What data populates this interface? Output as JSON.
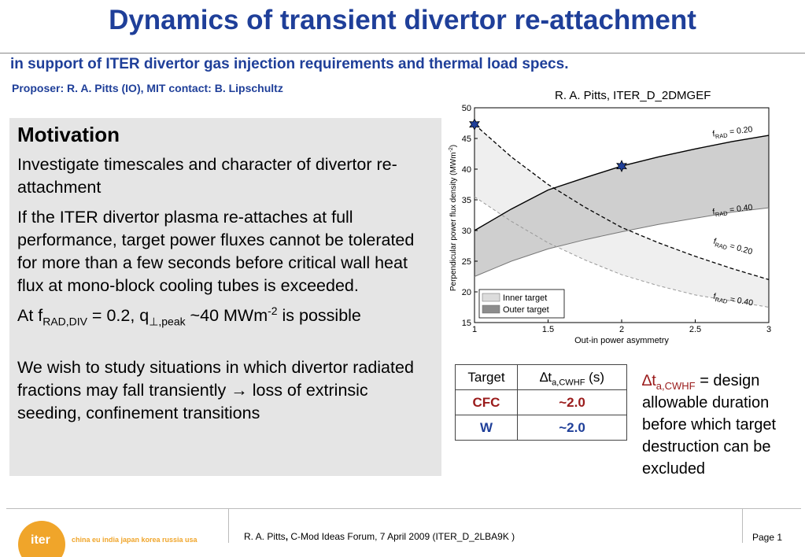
{
  "header": {
    "title": "Dynamics of transient divertor re-attachment",
    "subtitle": "in support of ITER divertor gas injection requirements and thermal load specs.",
    "proposer": "Proposer: R. A. Pitts (IO), MIT contact: B. Lipschultz",
    "credit": "R. A. Pitts, ITER_D_2DMGEF"
  },
  "motivation": {
    "heading": "Motivation",
    "p1": "Investigate timescales and character of divertor re-attachment",
    "p2": "If the ITER divertor plasma re-attaches at full performance,  target power fluxes cannot be tolerated for more than a few seconds before critical wall heat flux at mono-block cooling tubes is exceeded.",
    "p3_prefix": "At f",
    "p3_sub1": "RAD,DIV",
    "p3_mid": " = 0.2, q",
    "p3_sub2": "⊥,peak",
    "p3_after": " ~40 MWm",
    "p3_sup": "-2",
    "p3_end": " is possible",
    "p4_prefix": "We wish to study situations in which divertor radiated fractions may fall transiently ",
    "p4_arrow": "→",
    "p4_suffix": " loss of extrinsic seeding, confinement transitions"
  },
  "chart_data": {
    "type": "line",
    "xlabel": "Out-in power asymmetry",
    "ylabel": "Perpendicular power flux density (MWm",
    "ylabel_sup": "-2",
    "ylabel_end": ")",
    "xlim": [
      1,
      3
    ],
    "ylim": [
      15,
      50
    ],
    "x_ticks": [
      "1",
      "1.5",
      "2",
      "2.5",
      "3"
    ],
    "y_ticks": [
      "15",
      "20",
      "25",
      "30",
      "35",
      "40",
      "45",
      "50"
    ],
    "grid": false,
    "legend_position": "bottom-left",
    "legend": [
      "Inner target",
      "Outer target"
    ],
    "series": [
      {
        "name": "Outer target, f_RAD = 0.20",
        "style": "solid",
        "x": [
          1.0,
          1.25,
          1.5,
          1.75,
          2.0,
          2.25,
          2.5,
          2.75,
          3.0
        ],
        "y": [
          30.0,
          33.5,
          36.6,
          38.6,
          40.5,
          42.0,
          43.3,
          44.5,
          45.5
        ]
      },
      {
        "name": "Outer target, f_RAD = 0.40",
        "style": "solid-gray",
        "x": [
          1.0,
          1.25,
          1.5,
          1.75,
          2.0,
          2.25,
          2.5,
          2.75,
          3.0
        ],
        "y": [
          22.5,
          25.0,
          27.0,
          28.5,
          29.8,
          31.0,
          32.0,
          33.0,
          33.7
        ]
      },
      {
        "name": "Inner target, f_RAD = 0.20",
        "style": "dashed",
        "x": [
          1.0,
          1.25,
          1.5,
          1.75,
          2.0,
          2.25,
          2.5,
          2.75,
          3.0
        ],
        "y": [
          47.3,
          42.0,
          37.5,
          33.8,
          30.5,
          28.0,
          25.8,
          23.8,
          22.0
        ]
      },
      {
        "name": "Inner target, f_RAD = 0.40",
        "style": "dashed-gray",
        "x": [
          1.0,
          1.25,
          1.5,
          1.75,
          2.0,
          2.25,
          2.5,
          2.75,
          3.0
        ],
        "y": [
          35.5,
          31.5,
          28.0,
          25.2,
          22.8,
          21.0,
          19.5,
          18.5,
          17.5
        ]
      }
    ],
    "markers": [
      {
        "x": 1.0,
        "y": 47.3
      },
      {
        "x": 2.0,
        "y": 40.5
      }
    ],
    "annotations": [
      {
        "base": "f",
        "sub": "RAD",
        "text": " = 0.20",
        "x": 2.62,
        "y": 45.3,
        "rot": -7
      },
      {
        "base": "f",
        "sub": "RAD",
        "text": " = 0.40",
        "x": 2.62,
        "y": 32.6,
        "rot": -7
      },
      {
        "base": "f",
        "sub": "RAD",
        "text": " = 0.20",
        "x": 2.62,
        "y": 27.9,
        "rot": 16
      },
      {
        "base": "f",
        "sub": "RAD",
        "text": " = 0.40",
        "x": 2.62,
        "y": 18.9,
        "rot": 10
      }
    ]
  },
  "table": {
    "header_target": "Target",
    "header_dt": "∆t",
    "header_dt_sub": "a,CWHF",
    "header_dt_unit": " (s)",
    "rows": [
      {
        "target": "CFC",
        "value": "~2.0"
      },
      {
        "target": "W",
        "value": "~2.0"
      }
    ]
  },
  "note": {
    "symbol": "∆t",
    "sub": "a,CWHF",
    "text": " = design allowable duration before which target destruction can be excluded"
  },
  "footer": {
    "logo_text": "iter",
    "tagline": "china eu india japan korea russia usa",
    "citation_name": "R. A. Pitts",
    "citation_sep": ",",
    "citation_rest": " C-Mod Ideas Forum, 7 April 2009  (ITER_D_2LBA9K  )",
    "page": "Page 1"
  },
  "colors": {
    "title": "#1f3f99",
    "panel": "#e5e5e5",
    "accent_red": "#9a1b1b",
    "logo": "#f0a52a"
  }
}
